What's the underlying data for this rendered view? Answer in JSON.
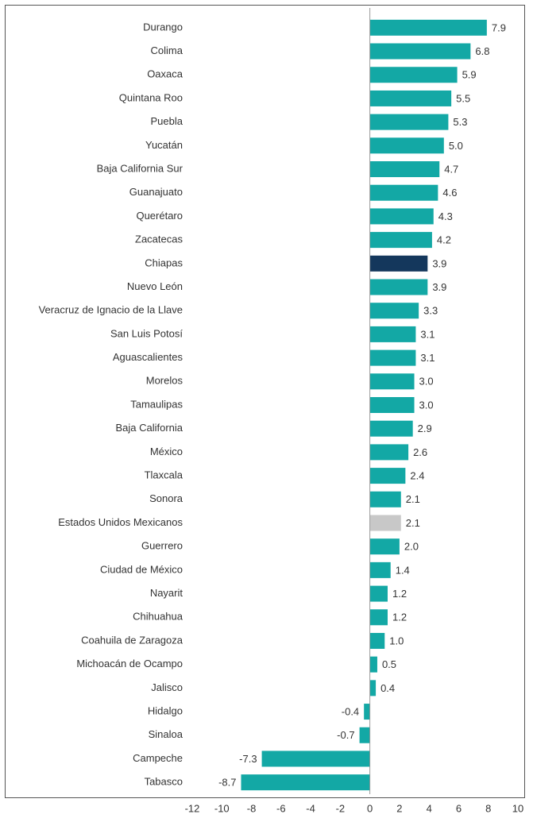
{
  "chart_data": {
    "type": "barh",
    "categories": [
      "Durango",
      "Colima",
      "Oaxaca",
      "Quintana Roo",
      "Puebla",
      "Yucatán",
      "Baja California Sur",
      "Guanajuato",
      "Querétaro",
      "Zacatecas",
      "Chiapas",
      "Nuevo León",
      "Veracruz de Ignacio de la Llave",
      "San Luis Potosí",
      "Aguascalientes",
      "Morelos",
      "Tamaulipas",
      "Baja California",
      "México",
      "Tlaxcala",
      "Sonora",
      "Estados Unidos Mexicanos",
      "Guerrero",
      "Ciudad de México",
      "Nayarit",
      "Chihuahua",
      "Coahuila de Zaragoza",
      "Michoacán de Ocampo",
      "Jalisco",
      "Hidalgo",
      "Sinaloa",
      "Campeche",
      "Tabasco"
    ],
    "values": [
      7.9,
      6.8,
      5.9,
      5.5,
      5.3,
      5.0,
      4.7,
      4.6,
      4.3,
      4.2,
      3.9,
      3.9,
      3.3,
      3.1,
      3.1,
      3.0,
      3.0,
      2.9,
      2.6,
      2.4,
      2.1,
      2.1,
      2.0,
      1.4,
      1.2,
      1.2,
      1.0,
      0.5,
      0.4,
      -0.4,
      -0.7,
      -7.3,
      -8.7
    ],
    "value_labels": [
      "7.9",
      "6.8",
      "5.9",
      "5.5",
      "5.3",
      "5.0",
      "4.7",
      "4.6",
      "4.3",
      "4.2",
      "3.9",
      "3.9",
      "3.3",
      "3.1",
      "3.1",
      "3.0",
      "3.0",
      "2.9",
      "2.6",
      "2.4",
      "2.1",
      "2.1",
      "2.0",
      "1.4",
      "1.2",
      "1.2",
      "1.0",
      "0.5",
      "0.4",
      "-0.4",
      "-0.7",
      "-7.3",
      "-8.7"
    ],
    "colors": [
      "#13a8a5",
      "#13a8a5",
      "#13a8a5",
      "#13a8a5",
      "#13a8a5",
      "#13a8a5",
      "#13a8a5",
      "#13a8a5",
      "#13a8a5",
      "#13a8a5",
      "#14375c",
      "#13a8a5",
      "#13a8a5",
      "#13a8a5",
      "#13a8a5",
      "#13a8a5",
      "#13a8a5",
      "#13a8a5",
      "#13a8a5",
      "#13a8a5",
      "#13a8a5",
      "#c8c8c8",
      "#13a8a5",
      "#13a8a5",
      "#13a8a5",
      "#13a8a5",
      "#13a8a5",
      "#13a8a5",
      "#13a8a5",
      "#13a8a5",
      "#13a8a5",
      "#13a8a5",
      "#13a8a5"
    ],
    "xlim": [
      -12,
      10
    ],
    "xticks": [
      -12,
      -10,
      -8,
      -6,
      -4,
      -2,
      0,
      2,
      4,
      6,
      8,
      10
    ],
    "grid": false
  }
}
